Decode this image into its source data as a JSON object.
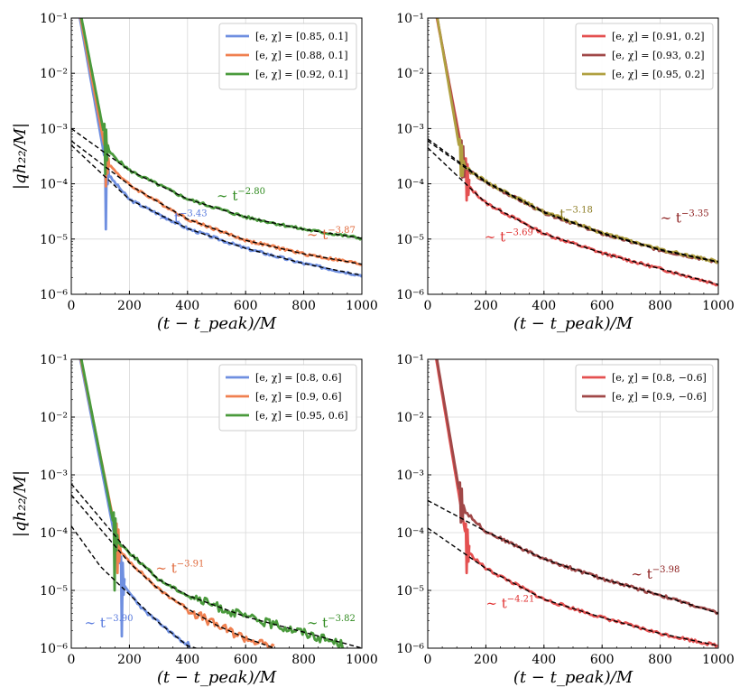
{
  "chart_data": [
    {
      "type": "line",
      "panel": "top-left",
      "xlabel": "(t − t_peak)/M",
      "ylabel": "|qh₂₂/M|",
      "xlim": [
        0,
        1000
      ],
      "ylim": [
        1e-06,
        0.1
      ],
      "yscale": "log",
      "grid": true,
      "x_ticks": [
        "0",
        "200",
        "400",
        "600",
        "800",
        "1000"
      ],
      "y_ticks": [
        "10⁻⁶",
        "10⁻⁵",
        "10⁻⁴",
        "10⁻³",
        "10⁻²",
        "10⁻¹"
      ],
      "legend_position": "top-right",
      "series": [
        {
          "name": "[e, χ] = [0.85, 0.1]",
          "color": "#6f8fe0",
          "peak": 0.12,
          "burst_t": 120,
          "burst_min": 1.5e-05,
          "late": [
            [
              130,
              0.00014
            ],
            [
              200,
              5.2e-05
            ],
            [
              400,
              1.55e-05
            ],
            [
              600,
              6.8e-06
            ],
            [
              800,
              3.6e-06
            ],
            [
              1000,
              2.2e-06
            ]
          ]
        },
        {
          "name": "[e, χ] = [0.88, 0.1]",
          "color": "#f08050",
          "peak": 0.14,
          "burst_t": 120,
          "burst_min": 9e-05,
          "late": [
            [
              130,
              0.00022
            ],
            [
              200,
              9.5e-05
            ],
            [
              400,
              2.3e-05
            ],
            [
              600,
              9.5e-06
            ],
            [
              800,
              5.4e-06
            ],
            [
              1000,
              3.5e-06
            ]
          ]
        },
        {
          "name": "[e, χ] = [0.92, 0.1]",
          "color": "#4a9a3c",
          "peak": 0.16,
          "burst_t": 118,
          "burst_min": 0.00015,
          "late": [
            [
              130,
              0.00038
            ],
            [
              200,
              0.000175
            ],
            [
              400,
              5.3e-05
            ],
            [
              600,
              2.5e-05
            ],
            [
              800,
              1.5e-05
            ],
            [
              1000,
              1.03e-05
            ]
          ]
        }
      ],
      "fits": [
        {
          "exponent": -3.43,
          "label": "∼ t",
          "sup": "−3.43",
          "color": "#5577dd",
          "label_t": 300,
          "label_y": 2e-05,
          "points": [
            [
              0,
              0.0005
            ],
            [
              200,
              5.2e-05
            ],
            [
              400,
              1.55e-05
            ],
            [
              600,
              6.8e-06
            ],
            [
              800,
              3.6e-06
            ],
            [
              1000,
              2.2e-06
            ]
          ]
        },
        {
          "exponent": -3.87,
          "label": "∼ t",
          "sup": "−3.87",
          "color": "#e0683a",
          "label_t": 810,
          "label_y": 1e-05,
          "points": [
            [
              0,
              0.0006
            ],
            [
              200,
              9.5e-05
            ],
            [
              400,
              2.3e-05
            ],
            [
              600,
              9.5e-06
            ],
            [
              800,
              5.4e-06
            ],
            [
              1000,
              3.5e-06
            ]
          ]
        },
        {
          "exponent": -2.8,
          "label": "∼ t",
          "sup": "−2.80",
          "color": "#2f8a1f",
          "label_t": 500,
          "label_y": 5e-05,
          "points": [
            [
              0,
              0.001
            ],
            [
              200,
              0.000175
            ],
            [
              400,
              5.3e-05
            ],
            [
              600,
              2.5e-05
            ],
            [
              800,
              1.5e-05
            ],
            [
              1000,
              1.03e-05
            ]
          ]
        }
      ]
    },
    {
      "type": "line",
      "panel": "top-right",
      "xlabel": "(t − t_peak)/M",
      "ylabel": "",
      "xlim": [
        0,
        1000
      ],
      "ylim": [
        1e-06,
        0.1
      ],
      "yscale": "log",
      "grid": true,
      "x_ticks": [
        "0",
        "200",
        "400",
        "600",
        "800",
        "1000"
      ],
      "y_ticks": [
        "10⁻⁶",
        "10⁻⁵",
        "10⁻⁴",
        "10⁻³",
        "10⁻²",
        "10⁻¹"
      ],
      "legend_position": "top-right",
      "series": [
        {
          "name": "[e, χ] = [0.91, 0.2]",
          "color": "#e45050",
          "peak": 0.13,
          "burst_t": 135,
          "burst_min": 5e-05,
          "late": [
            [
              140,
              9e-05
            ],
            [
              200,
              4.5e-05
            ],
            [
              400,
              1.25e-05
            ],
            [
              600,
              5.6e-06
            ],
            [
              800,
              2.9e-06
            ],
            [
              1000,
              1.5e-06
            ]
          ]
        },
        {
          "name": "[e, χ] = [0.93, 0.2]",
          "color": "#a04848",
          "peak": 0.15,
          "burst_t": 120,
          "burst_min": 0.00013,
          "late": [
            [
              130,
              0.00019
            ],
            [
              200,
              0.000105
            ],
            [
              400,
              3e-05
            ],
            [
              600,
              1.25e-05
            ],
            [
              800,
              6.3e-06
            ],
            [
              1000,
              3.8e-06
            ]
          ]
        },
        {
          "name": "[e, χ] = [0.95, 0.2]",
          "color": "#b0a040",
          "peak": 0.16,
          "burst_t": 115,
          "burst_min": 0.00014,
          "late": [
            [
              130,
              0.0002
            ],
            [
              200,
              0.00011
            ],
            [
              400,
              3.1e-05
            ],
            [
              600,
              1.3e-05
            ],
            [
              800,
              6.5e-06
            ],
            [
              1000,
              3.9e-06
            ]
          ]
        }
      ],
      "fits": [
        {
          "exponent": -3.69,
          "label": "∼ t",
          "sup": "−3.69",
          "color": "#e03030",
          "label_t": 195,
          "label_y": 9e-06,
          "points": [
            [
              0,
              0.00045
            ],
            [
              200,
              4.5e-05
            ],
            [
              400,
              1.25e-05
            ],
            [
              600,
              5.6e-06
            ],
            [
              800,
              2.9e-06
            ],
            [
              1000,
              1.5e-06
            ]
          ]
        },
        {
          "exponent": -3.18,
          "label": "∼ t",
          "sup": "−3.18",
          "color": "#8a7a20",
          "label_t": 400,
          "label_y": 2.3e-05,
          "points": [
            [
              0,
              0.00065
            ],
            [
              200,
              0.00011
            ],
            [
              400,
              3.1e-05
            ],
            [
              600,
              1.3e-05
            ],
            [
              800,
              6.5e-06
            ],
            [
              1000,
              3.9e-06
            ]
          ]
        },
        {
          "exponent": -3.35,
          "label": "∼ t",
          "sup": "−3.35",
          "color": "#8a1a1a",
          "label_t": 800,
          "label_y": 2e-05,
          "points": [
            [
              0,
              0.0006
            ],
            [
              200,
              0.000105
            ],
            [
              400,
              3e-05
            ],
            [
              600,
              1.25e-05
            ],
            [
              800,
              6.3e-06
            ],
            [
              1000,
              3.8e-06
            ]
          ]
        }
      ]
    },
    {
      "type": "line",
      "panel": "bottom-left",
      "xlabel": "(t − t_peak)/M",
      "ylabel": "|qh₂₂/M|",
      "xlim": [
        0,
        1000
      ],
      "ylim": [
        1e-06,
        0.1
      ],
      "yscale": "log",
      "grid": true,
      "x_ticks": [
        "0",
        "200",
        "400",
        "600",
        "800",
        "1000"
      ],
      "y_ticks": [
        "10⁻⁶",
        "10⁻⁵",
        "10⁻⁴",
        "10⁻³",
        "10⁻²",
        "10⁻¹"
      ],
      "legend_position": "top-right",
      "series": [
        {
          "name": "[e, χ] = [0.8, 0.6]",
          "color": "#6f8fe0",
          "peak": 0.12,
          "burst_t": 175,
          "burst_min": 1.6e-06,
          "late": [
            [
              180,
              1.2e-05
            ],
            [
              250,
              4.5e-06
            ],
            [
              300,
              2.8e-06
            ],
            [
              400,
              1.1e-06
            ],
            [
              430,
              1e-06
            ]
          ]
        },
        {
          "name": "[e, χ] = [0.9, 0.6]",
          "color": "#f08050",
          "peak": 0.13,
          "burst_t": 160,
          "burst_min": 2e-05,
          "late": [
            [
              170,
              4.5e-05
            ],
            [
              300,
              1.05e-05
            ],
            [
              400,
              4.8e-06
            ],
            [
              500,
              2.5e-06
            ],
            [
              600,
              1.5e-06
            ],
            [
              700,
              1e-06
            ]
          ]
        },
        {
          "name": "[e, χ] = [0.95, 0.6]",
          "color": "#4a9a3c",
          "peak": 0.15,
          "burst_t": 150,
          "burst_min": 1e-05,
          "late": [
            [
              160,
              7e-05
            ],
            [
              300,
              1.55e-05
            ],
            [
              400,
              8.2e-06
            ],
            [
              600,
              3.5e-06
            ],
            [
              800,
              1.9e-06
            ],
            [
              950,
              1.1e-06
            ]
          ]
        }
      ],
      "fits": [
        {
          "exponent": -3.9,
          "label": "∼ t",
          "sup": "−3.90",
          "color": "#5577dd",
          "label_t": 45,
          "label_y": 2.3e-06,
          "points": [
            [
              0,
              0.00013
            ],
            [
              100,
              2.6e-05
            ],
            [
              200,
              8.5e-06
            ],
            [
              300,
              2.8e-06
            ],
            [
              400,
              1.1e-06
            ],
            [
              430,
              1e-06
            ]
          ]
        },
        {
          "exponent": -3.91,
          "label": "∼ t",
          "sup": "−3.91",
          "color": "#e0683a",
          "label_t": 290,
          "label_y": 2e-05,
          "points": [
            [
              0,
              0.00045
            ],
            [
              200,
              3e-05
            ],
            [
              300,
              1.05e-05
            ],
            [
              400,
              4.8e-06
            ],
            [
              500,
              2.5e-06
            ],
            [
              600,
              1.5e-06
            ],
            [
              700,
              1e-06
            ]
          ]
        },
        {
          "exponent": -3.82,
          "label": "∼ t",
          "sup": "−3.82",
          "color": "#2f8a1f",
          "label_t": 810,
          "label_y": 2.3e-06,
          "points": [
            [
              0,
              0.0007
            ],
            [
              200,
              4.5e-05
            ],
            [
              300,
              1.55e-05
            ],
            [
              400,
              8.2e-06
            ],
            [
              600,
              3.5e-06
            ],
            [
              800,
              1.9e-06
            ],
            [
              1000,
              1e-06
            ]
          ]
        }
      ]
    },
    {
      "type": "line",
      "panel": "bottom-right",
      "xlabel": "(t − t_peak)/M",
      "ylabel": "",
      "xlim": [
        0,
        1000
      ],
      "ylim": [
        1e-06,
        0.1
      ],
      "yscale": "log",
      "grid": true,
      "x_ticks": [
        "0",
        "200",
        "400",
        "600",
        "800",
        "1000"
      ],
      "y_ticks": [
        "10⁻⁶",
        "10⁻⁵",
        "10⁻⁴",
        "10⁻³",
        "10⁻²",
        "10⁻¹"
      ],
      "legend_position": "top-right",
      "series": [
        {
          "name": "[e, χ] = [0.8, −0.6]",
          "color": "#e45050",
          "peak": 0.12,
          "burst_t": 135,
          "burst_min": 2e-05,
          "late": [
            [
              140,
              4.5e-05
            ],
            [
              200,
              2.4e-05
            ],
            [
              400,
              7e-06
            ],
            [
              600,
              3.4e-06
            ],
            [
              800,
              1.8e-06
            ],
            [
              1000,
              1.1e-06
            ]
          ]
        },
        {
          "name": "[e, χ] = [0.9, −0.6]",
          "color": "#a04848",
          "peak": 0.14,
          "burst_t": 115,
          "burst_min": 0.00015,
          "late": [
            [
              130,
              0.00023
            ],
            [
              200,
              0.000105
            ],
            [
              400,
              3.5e-05
            ],
            [
              600,
              1.6e-05
            ],
            [
              800,
              8.3e-06
            ],
            [
              1000,
              4e-06
            ]
          ]
        }
      ],
      "fits": [
        {
          "exponent": -4.21,
          "label": "∼ t",
          "sup": "−4.21",
          "color": "#e03030",
          "label_t": 200,
          "label_y": 5e-06,
          "points": [
            [
              0,
              0.00012
            ],
            [
              200,
              2.4e-05
            ],
            [
              400,
              7e-06
            ],
            [
              600,
              3.4e-06
            ],
            [
              800,
              1.8e-06
            ],
            [
              1000,
              1.1e-06
            ]
          ]
        },
        {
          "exponent": -3.98,
          "label": "∼ t",
          "sup": "−3.98",
          "color": "#8a1a1a",
          "label_t": 700,
          "label_y": 1.6e-05,
          "points": [
            [
              0,
              0.00036
            ],
            [
              200,
              0.000105
            ],
            [
              400,
              3.5e-05
            ],
            [
              600,
              1.6e-05
            ],
            [
              800,
              8.3e-06
            ],
            [
              1000,
              4e-06
            ]
          ]
        }
      ]
    }
  ]
}
